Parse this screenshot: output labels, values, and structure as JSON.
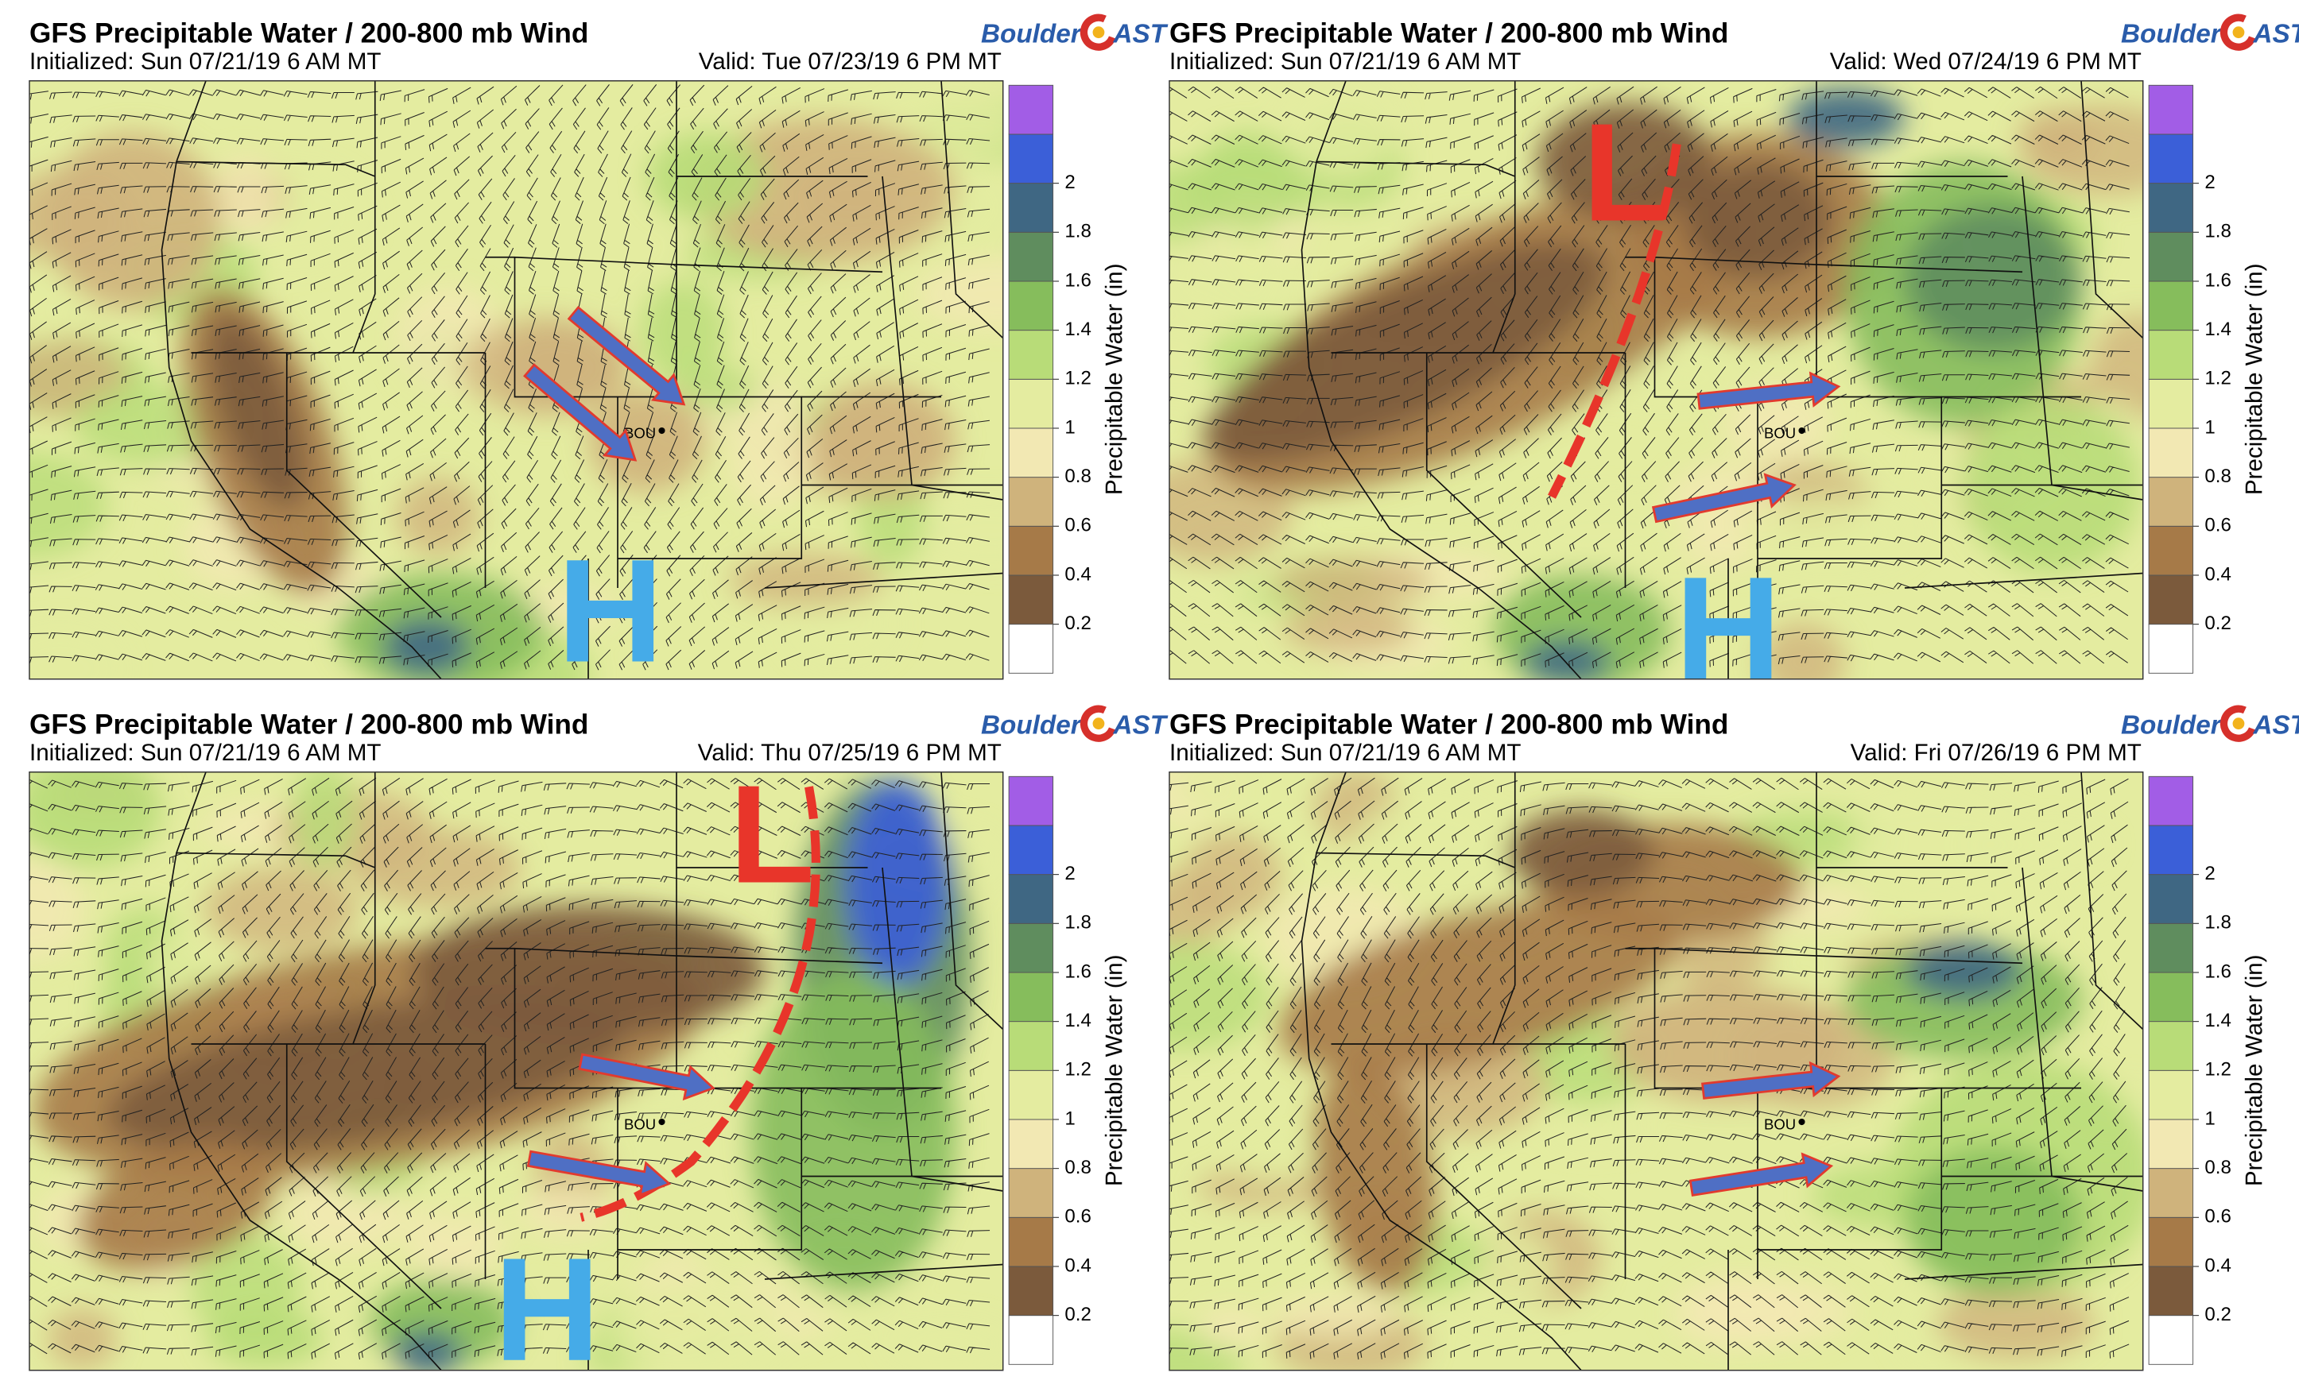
{
  "panels": [
    {
      "title": "GFS Precipitable Water / 200-800 mb Wind",
      "initialized": "Initialized: Sun 07/21/19 6 AM MT",
      "valid": "Valid: Tue 07/23/19 6 PM MT",
      "logo": {
        "left": "Boulder",
        "right": "AST"
      },
      "station": "BOU",
      "high": "H"
    },
    {
      "title": "GFS Precipitable Water / 200-800 mb Wind",
      "initialized": "Initialized: Sun 07/21/19 6 AM MT",
      "valid": "Valid: Wed 07/24/19 6 PM MT",
      "logo": {
        "left": "Boulder",
        "right": "AST"
      },
      "station": "BOU",
      "high": "H",
      "low": "L"
    },
    {
      "title": "GFS Precipitable Water / 200-800 mb Wind",
      "initialized": "Initialized: Sun 07/21/19 6 AM MT",
      "valid": "Valid: Thu 07/25/19 6 PM MT",
      "logo": {
        "left": "Boulder",
        "right": "AST"
      },
      "station": "BOU",
      "high": "H",
      "low": "L"
    },
    {
      "title": "GFS Precipitable Water / 200-800 mb Wind",
      "initialized": "Initialized: Sun 07/21/19 6 AM MT",
      "valid": "Valid: Fri 07/26/19 6 PM MT",
      "logo": {
        "left": "Boulder",
        "right": "AST"
      },
      "station": "BOU"
    }
  ],
  "colorbar": {
    "label": "Precipitable Water (in)",
    "ticks": [
      0.2,
      0.4,
      0.6,
      0.8,
      1,
      1.2,
      1.4,
      1.6,
      1.8,
      2
    ],
    "colors": [
      "#ffffff",
      "#7b5a3c",
      "#a67a48",
      "#cfb37c",
      "#f2e8b3",
      "#e4eca0",
      "#b8dc78",
      "#86bd5c",
      "#5f8d5e",
      "#3f6783",
      "#3b5fd8",
      "#a25de6"
    ]
  }
}
